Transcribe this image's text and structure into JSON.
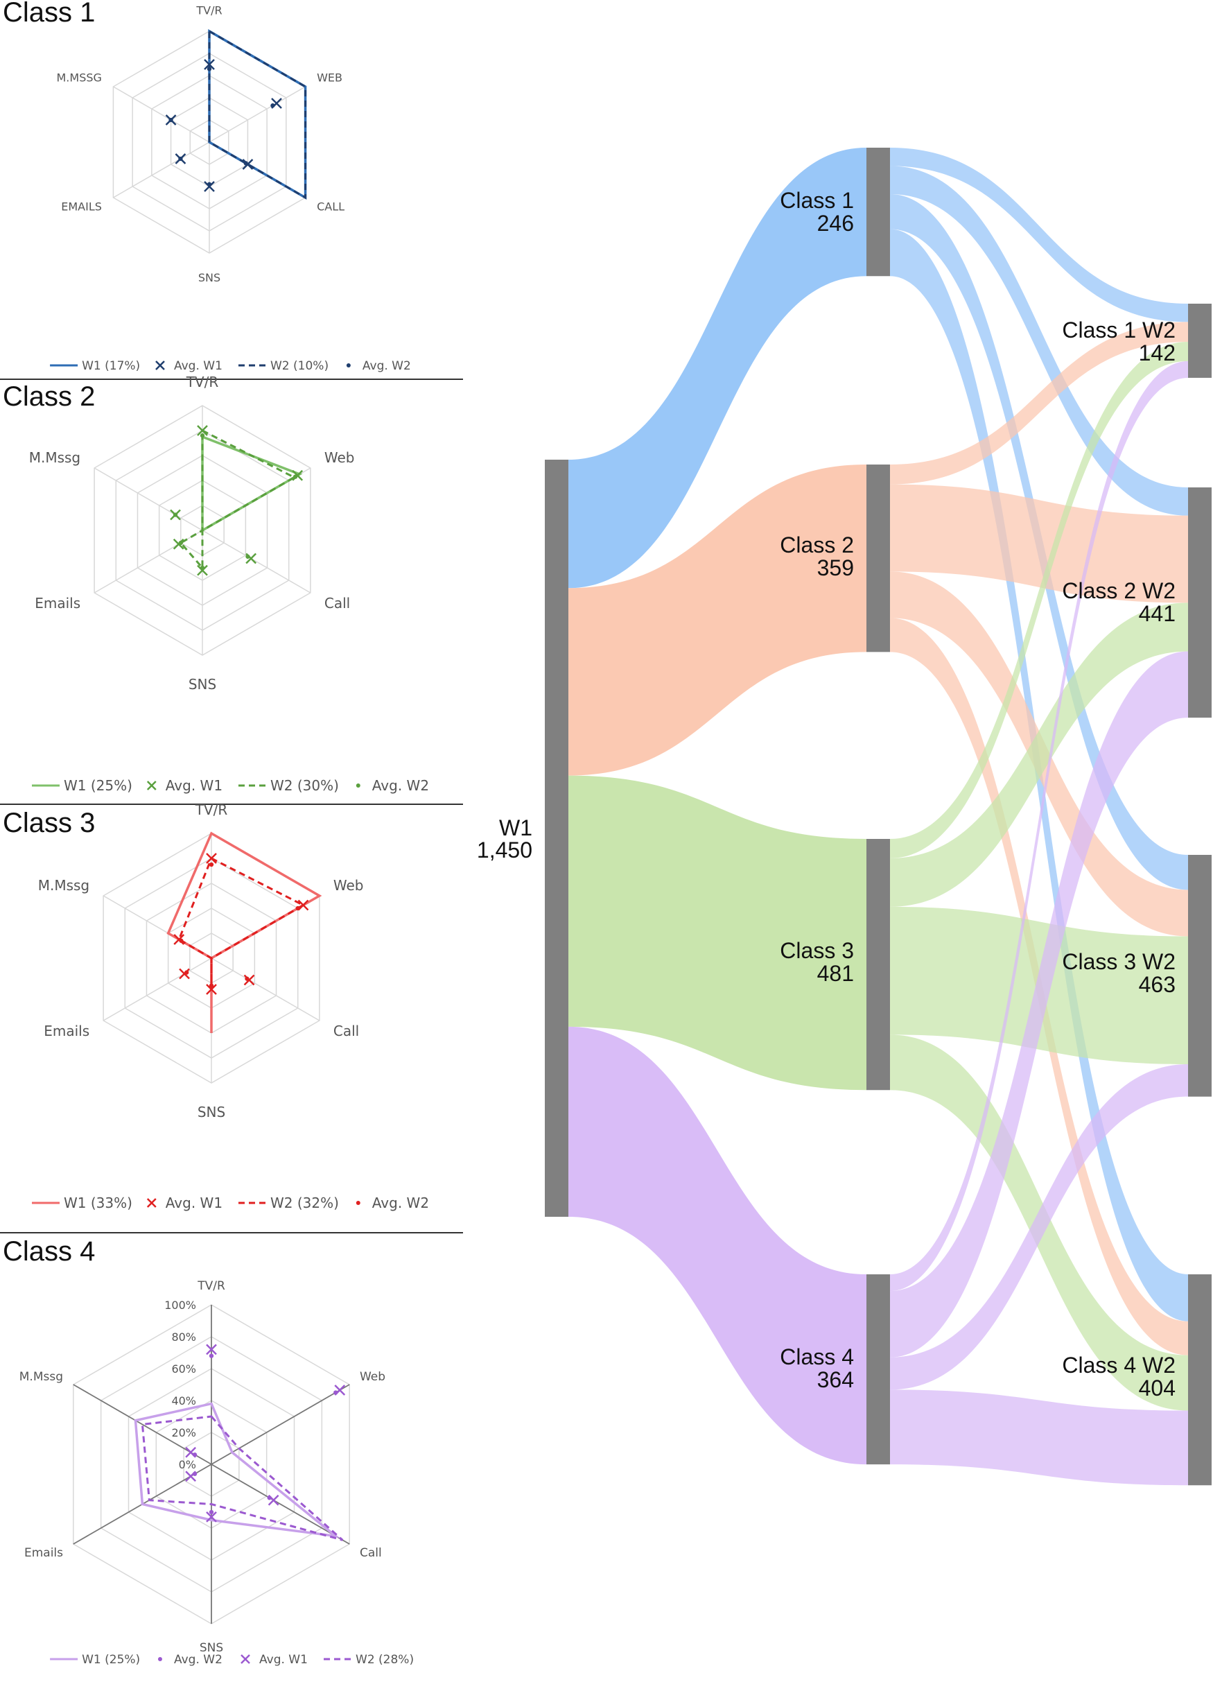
{
  "chart_data": [
    {
      "type": "radar",
      "title": "Class 1",
      "axes": [
        "TV/R",
        "WEB",
        "CALL",
        "SNS",
        "EMAILS",
        "M.MSSG"
      ],
      "line_color": "#2e6db4",
      "line_color_dark": "#1f3e6e",
      "series": [
        {
          "name": "W1 (17%)",
          "style": "solid",
          "values": [
            100,
            100,
            100,
            0,
            0,
            0
          ]
        },
        {
          "name": "W2 (10%)",
          "style": "dashed",
          "values": [
            100,
            100,
            100,
            0,
            0,
            0
          ]
        }
      ],
      "averages": [
        {
          "name": "Avg. W1",
          "marker": "x",
          "values": [
            70,
            70,
            40,
            40,
            30,
            40
          ]
        },
        {
          "name": "Avg. W2",
          "marker": "dot",
          "values": [
            66,
            66,
            38,
            38,
            30,
            40
          ]
        }
      ],
      "legend": [
        "W1 (17%)",
        "Avg. W1",
        "W2 (10%)",
        "Avg. W2"
      ],
      "rlim": [
        0,
        100
      ],
      "grid_rings": 5
    },
    {
      "type": "radar",
      "title": "Class 2",
      "axes": [
        "TV/R",
        "Web",
        "Call",
        "SNS",
        "Emails",
        "M.Mssg"
      ],
      "line_color": "#7fc06a",
      "line_color_dark": "#5aa03e",
      "series": [
        {
          "name": "W1 (25%)",
          "style": "solid",
          "values": [
            75,
            90,
            0,
            0,
            0,
            0
          ]
        },
        {
          "name": "W2 (30%)",
          "style": "dashed",
          "values": [
            80,
            85,
            0,
            30,
            20,
            0
          ]
        }
      ],
      "averages": [
        {
          "name": "Avg. W1",
          "marker": "x",
          "values": [
            80,
            88,
            45,
            32,
            22,
            25
          ]
        },
        {
          "name": "Avg. W2",
          "marker": "dot",
          "values": [
            76,
            86,
            42,
            30,
            20,
            25
          ]
        }
      ],
      "legend": [
        "W1 (25%)",
        "Avg. W1",
        "W2 (30%)",
        "Avg. W2"
      ],
      "rlim": [
        0,
        100
      ],
      "grid_rings": 5
    },
    {
      "type": "radar",
      "title": "Class 3",
      "axes": [
        "TV/R",
        "Web",
        "Call",
        "SNS",
        "Emails",
        "M.Mssg"
      ],
      "line_color": "#f06a6a",
      "line_color_dark": "#e02020",
      "series": [
        {
          "name": "W1 (33%)",
          "style": "solid",
          "values": [
            100,
            100,
            0,
            60,
            0,
            40
          ]
        },
        {
          "name": "W2 (32%)",
          "style": "dashed",
          "values": [
            80,
            85,
            0,
            25,
            0,
            30
          ]
        }
      ],
      "averages": [
        {
          "name": "Avg. W1",
          "marker": "x",
          "values": [
            80,
            85,
            35,
            25,
            25,
            30
          ]
        },
        {
          "name": "Avg. W2",
          "marker": "dot",
          "values": [
            75,
            80,
            33,
            22,
            23,
            28
          ]
        }
      ],
      "legend": [
        "W1 (33%)",
        "Avg. W1",
        "W2 (32%)",
        "Avg. W2"
      ],
      "rlim": [
        0,
        100
      ],
      "grid_rings": 5
    },
    {
      "type": "radar",
      "title": "Class 4",
      "axes": [
        "TV/R",
        "Web",
        "Call",
        "SNS",
        "Emails",
        "M.Mssg"
      ],
      "line_color": "#c7a0ea",
      "line_color_dark": "#9b59d0",
      "series": [
        {
          "name": "W1 (25%)",
          "style": "solid",
          "values": [
            38,
            15,
            90,
            35,
            50,
            55
          ]
        },
        {
          "name": "W2 (28%)",
          "style": "dashed",
          "values": [
            30,
            20,
            95,
            25,
            45,
            50
          ]
        }
      ],
      "averages": [
        {
          "name": "Avg. W2",
          "marker": "dot",
          "values": [
            68,
            90,
            42,
            30,
            12,
            12
          ]
        },
        {
          "name": "Avg. W1",
          "marker": "x",
          "values": [
            72,
            93,
            45,
            33,
            15,
            15
          ]
        }
      ],
      "rticks": [
        "0%",
        "20%",
        "40%",
        "60%",
        "80%",
        "100%"
      ],
      "legend": [
        "W1 (25%)",
        "Avg. W2",
        "Avg. W1",
        "W2 (28%)"
      ],
      "rlim": [
        0,
        100
      ],
      "grid_rings": 5
    },
    {
      "type": "sankey",
      "source": {
        "name": "W1",
        "value_label": "1,450",
        "value": 1450
      },
      "nodes_w1": [
        {
          "name": "Class 1",
          "value": 246,
          "value_label": "246",
          "color": "#94c4f8"
        },
        {
          "name": "Class 2",
          "value": 359,
          "value_label": "359",
          "color": "#fbc6ae"
        },
        {
          "name": "Class 3",
          "value": 481,
          "value_label": "481",
          "color": "#c6e4a9"
        },
        {
          "name": "Class 4",
          "value": 364,
          "value_label": "364",
          "color": "#d7b8f7"
        }
      ],
      "nodes_w2": [
        {
          "name": "Class 1 W2",
          "value": 142,
          "value_label": "142"
        },
        {
          "name": "Class 2 W2",
          "value": 441,
          "value_label": "441"
        },
        {
          "name": "Class 3 W2",
          "value": 463,
          "value_label": "463"
        },
        {
          "name": "Class 4 W2",
          "value": 404,
          "value_label": "404"
        }
      ],
      "flows": [
        [
          35,
          54,
          67,
          90
        ],
        [
          38,
          167,
          89,
          65
        ],
        [
          37,
          93,
          245,
          106
        ],
        [
          32,
          127,
          62,
          143
        ]
      ],
      "node_color": "#808080"
    }
  ]
}
